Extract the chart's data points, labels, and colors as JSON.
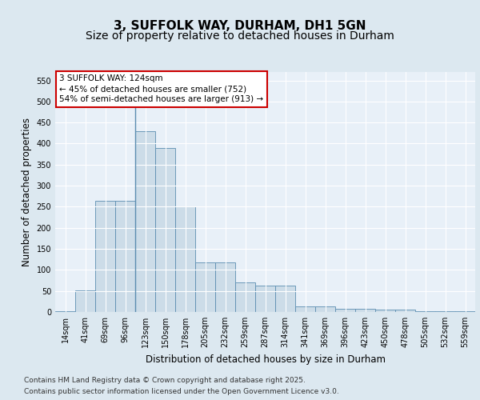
{
  "title": "3, SUFFOLK WAY, DURHAM, DH1 5GN",
  "subtitle": "Size of property relative to detached houses in Durham",
  "xlabel": "Distribution of detached houses by size in Durham",
  "ylabel": "Number of detached properties",
  "categories": [
    "14sqm",
    "41sqm",
    "69sqm",
    "96sqm",
    "123sqm",
    "150sqm",
    "178sqm",
    "205sqm",
    "232sqm",
    "259sqm",
    "287sqm",
    "314sqm",
    "341sqm",
    "369sqm",
    "396sqm",
    "423sqm",
    "450sqm",
    "478sqm",
    "505sqm",
    "532sqm",
    "559sqm"
  ],
  "values": [
    2,
    51,
    265,
    265,
    430,
    390,
    250,
    117,
    117,
    70,
    62,
    62,
    13,
    13,
    8,
    7,
    6,
    5,
    2,
    1,
    2
  ],
  "bar_color": "#ccdce8",
  "bar_edge_color": "#5b8db0",
  "vline_index": 4,
  "vline_color": "#5b8db0",
  "annotation_text": "3 SUFFOLK WAY: 124sqm\n← 45% of detached houses are smaller (752)\n54% of semi-detached houses are larger (913) →",
  "annotation_box_facecolor": "#ffffff",
  "annotation_box_edgecolor": "#cc0000",
  "bg_color": "#dce8f0",
  "plot_bg_color": "#e8f0f8",
  "grid_color": "#ffffff",
  "ylim": [
    0,
    570
  ],
  "yticks": [
    0,
    50,
    100,
    150,
    200,
    250,
    300,
    350,
    400,
    450,
    500,
    550
  ],
  "footer_line1": "Contains HM Land Registry data © Crown copyright and database right 2025.",
  "footer_line2": "Contains public sector information licensed under the Open Government Licence v3.0.",
  "title_fontsize": 11,
  "subtitle_fontsize": 10,
  "label_fontsize": 8.5,
  "tick_fontsize": 7,
  "annotation_fontsize": 7.5,
  "footer_fontsize": 6.5
}
